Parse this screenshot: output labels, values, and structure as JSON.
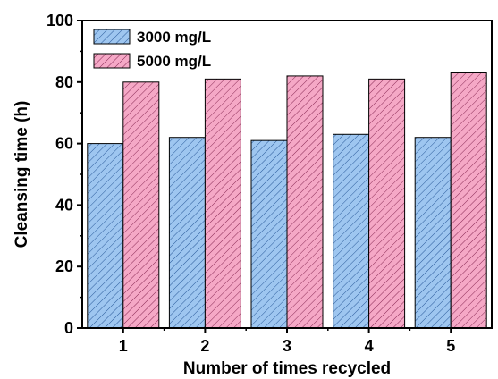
{
  "chart_data": {
    "type": "bar",
    "categories": [
      "1",
      "2",
      "3",
      "4",
      "5"
    ],
    "series": [
      {
        "name": "3000 mg/L",
        "values": [
          60,
          62,
          61,
          63,
          62
        ],
        "color": "#9ec6f0",
        "hatch": "#2a5a9a"
      },
      {
        "name": "5000 mg/L",
        "values": [
          80,
          81,
          82,
          81,
          83
        ],
        "color": "#f5a8c6",
        "hatch": "#8a2a55"
      }
    ],
    "xlabel": "Number of times recycled",
    "ylabel": "Cleansing time (h)",
    "ylim": [
      0,
      100
    ],
    "yticks": [
      0,
      20,
      40,
      60,
      80,
      100
    ],
    "legend_position": "top-left",
    "grid": false
  }
}
